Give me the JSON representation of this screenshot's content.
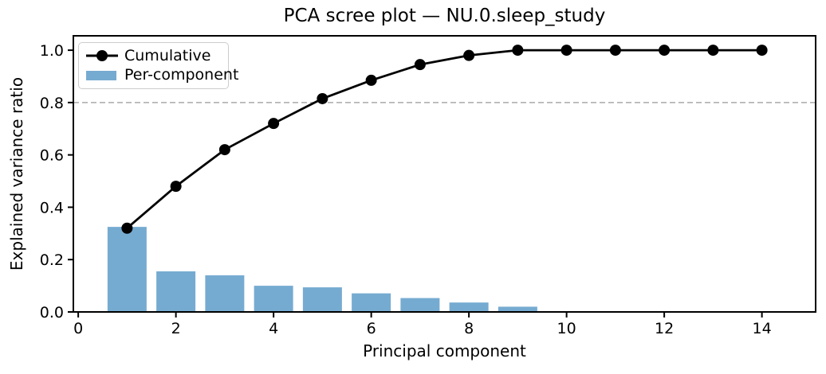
{
  "chart_data": {
    "type": "bar",
    "title": "PCA scree plot — NU.0.sleep_study",
    "xlabel": "Principal component",
    "ylabel": "Explained variance ratio",
    "x": [
      1,
      2,
      3,
      4,
      5,
      6,
      7,
      8,
      9,
      10,
      11,
      12,
      13,
      14
    ],
    "series": [
      {
        "name": "Cumulative",
        "type": "line",
        "color": "#000000",
        "marker": "circle",
        "values": [
          0.32,
          0.48,
          0.62,
          0.72,
          0.815,
          0.885,
          0.945,
          0.98,
          1.0,
          1.0,
          1.0,
          1.0,
          1.0,
          1.0
        ]
      },
      {
        "name": "Per-component",
        "type": "bar",
        "color": "#76abd1",
        "values": [
          0.325,
          0.155,
          0.14,
          0.1,
          0.094,
          0.071,
          0.053,
          0.036,
          0.02,
          0,
          0,
          0,
          0,
          0
        ]
      }
    ],
    "threshold": {
      "y": 0.8,
      "color": "#aaaaaa",
      "style": "dashed"
    },
    "xticks": {
      "values": [
        0,
        2,
        4,
        6,
        8,
        10,
        12,
        14
      ],
      "labels": [
        "0",
        "2",
        "4",
        "6",
        "8",
        "10",
        "12",
        "14"
      ]
    },
    "yticks": {
      "values": [
        0,
        0.2,
        0.4,
        0.6,
        0.8,
        1.0
      ],
      "labels": [
        "0.0",
        "0.2",
        "0.4",
        "0.6",
        "0.8",
        "1.0"
      ]
    },
    "xlim": [
      -0.1,
      15.1
    ],
    "ylim": [
      0,
      1.055
    ],
    "bar_width": 0.8,
    "legend_position": "upper left",
    "grid": false,
    "spine_color": "#000000"
  }
}
